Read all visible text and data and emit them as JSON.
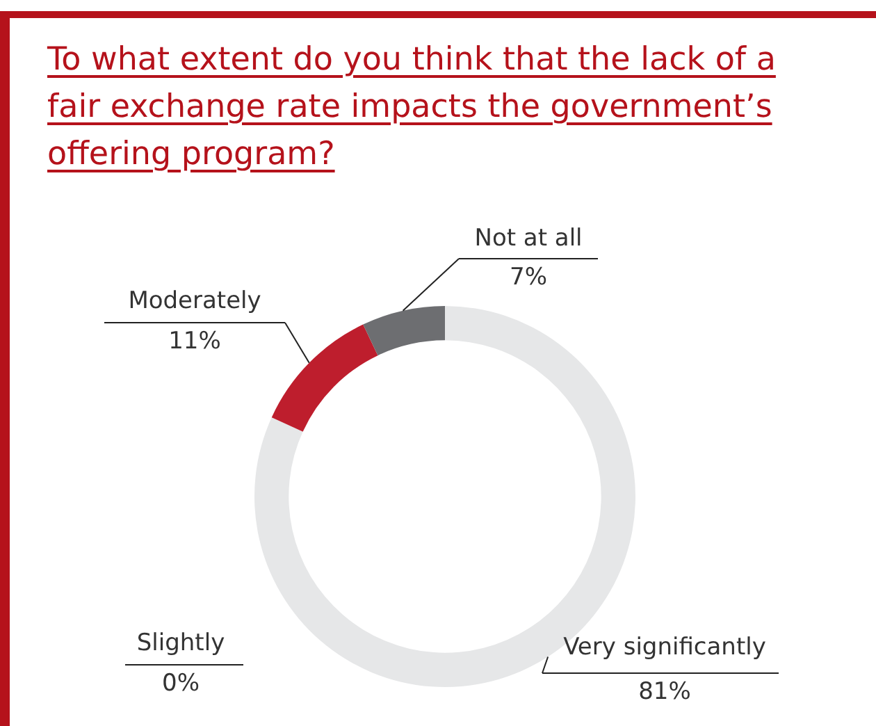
{
  "chart_data": {
    "type": "donut",
    "title": "To what extent do you think that the lack of a fair exchange rate impacts the government’s  offering  program?",
    "categories": [
      "Very significantly",
      "Slightly",
      "Moderately",
      "Not at all"
    ],
    "values": [
      81,
      0,
      11,
      7
    ],
    "value_labels": [
      "81%",
      "0%",
      "11%",
      "7%"
    ],
    "colors": [
      "#e6e7e8",
      "#c9c9c9",
      "#be1e2d",
      "#6d6e71"
    ]
  }
}
